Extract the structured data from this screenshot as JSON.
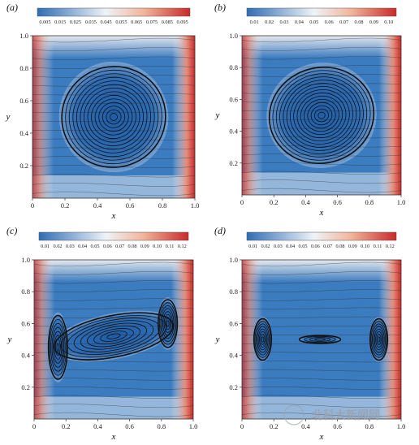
{
  "figure": {
    "watermark": "北科大新闻网",
    "colormap": {
      "low": "#2f6db5",
      "mid": "#eef3f8",
      "high": "#c92a2a"
    }
  },
  "chart_data": [
    {
      "type": "heatmap",
      "panel_label": "(a)",
      "xlabel": "x",
      "ylabel": "y",
      "xlim": [
        0,
        1
      ],
      "ylim": [
        0,
        1
      ],
      "xticks": [
        "0",
        "0.2",
        "0.4",
        "0.6",
        "0.8",
        "1.0"
      ],
      "yticks": [
        "0.2",
        "0.4",
        "0.6",
        "0.8",
        "1.0"
      ],
      "colorbar": {
        "min": 0.005,
        "max": 0.095,
        "ticks": [
          "0.005",
          "0.015",
          "0.025",
          "0.035",
          "0.045",
          "0.055",
          "0.065",
          "0.075",
          "0.085",
          "0.095"
        ]
      },
      "vortices": [
        {
          "cx": 0.5,
          "cy": 0.5,
          "rx": 0.32,
          "ry": 0.31,
          "tilt": 0.34,
          "loops": 14
        }
      ]
    },
    {
      "type": "heatmap",
      "panel_label": "(b)",
      "xlabel": "x",
      "ylabel": "y",
      "xlim": [
        0,
        1
      ],
      "ylim": [
        0,
        1
      ],
      "xticks": [
        "0",
        "0.2",
        "0.4",
        "0.6",
        "0.8",
        "1.0"
      ],
      "yticks": [
        "0.2",
        "0.4",
        "0.6",
        "0.8",
        "1.0"
      ],
      "colorbar": {
        "min": 0.01,
        "max": 0.1,
        "ticks": [
          "0.01",
          "0.02",
          "0.03",
          "0.04",
          "0.05",
          "0.06",
          "0.07",
          "0.08",
          "0.09",
          "0.10"
        ]
      },
      "vortices": [
        {
          "cx": 0.5,
          "cy": 0.5,
          "rx": 0.33,
          "ry": 0.3,
          "tilt": 0.36,
          "loops": 15
        }
      ]
    },
    {
      "type": "heatmap",
      "panel_label": "(c)",
      "xlabel": "x",
      "ylabel": "y",
      "xlim": [
        0,
        1
      ],
      "ylim": [
        0,
        1
      ],
      "xticks": [
        "0",
        "0.2",
        "0.4",
        "0.6",
        "0.8",
        "1.0"
      ],
      "yticks": [
        "0.2",
        "0.4",
        "0.6",
        "0.8",
        "1.0"
      ],
      "colorbar": {
        "min": 0.01,
        "max": 0.12,
        "ticks": [
          "0.01",
          "0.02",
          "0.03",
          "0.04",
          "0.05",
          "0.06",
          "0.07",
          "0.08",
          "0.09",
          "0.10",
          "0.11",
          "0.12"
        ]
      },
      "vortices": [
        {
          "cx": 0.5,
          "cy": 0.52,
          "rx": 0.38,
          "ry": 0.13,
          "tilt": 0.28,
          "loops": 9
        },
        {
          "cx": 0.15,
          "cy": 0.45,
          "rx": 0.06,
          "ry": 0.2,
          "tilt": 0.0,
          "loops": 8
        },
        {
          "cx": 0.84,
          "cy": 0.6,
          "rx": 0.06,
          "ry": 0.15,
          "tilt": 0.0,
          "loops": 8
        }
      ]
    },
    {
      "type": "heatmap",
      "panel_label": "(d)",
      "xlabel": "x",
      "ylabel": "y",
      "xlim": [
        0,
        1
      ],
      "ylim": [
        0,
        1
      ],
      "xticks": [
        "0",
        "0.2",
        "0.4",
        "0.6",
        "0.8",
        "1.0"
      ],
      "yticks": [
        "0.2",
        "0.4",
        "0.6",
        "0.8",
        "1.0"
      ],
      "colorbar": {
        "min": 0.01,
        "max": 0.12,
        "ticks": [
          "0.01",
          "0.02",
          "0.03",
          "0.04",
          "0.05",
          "0.06",
          "0.07",
          "0.08",
          "0.09",
          "0.10",
          "0.11",
          "0.12"
        ]
      },
      "vortices": [
        {
          "cx": 0.13,
          "cy": 0.5,
          "rx": 0.055,
          "ry": 0.13,
          "tilt": 0.0,
          "loops": 8
        },
        {
          "cx": 0.86,
          "cy": 0.5,
          "rx": 0.055,
          "ry": 0.13,
          "tilt": 0.0,
          "loops": 8
        },
        {
          "cx": 0.49,
          "cy": 0.5,
          "rx": 0.13,
          "ry": 0.025,
          "tilt": 0.0,
          "loops": 4
        }
      ]
    }
  ]
}
